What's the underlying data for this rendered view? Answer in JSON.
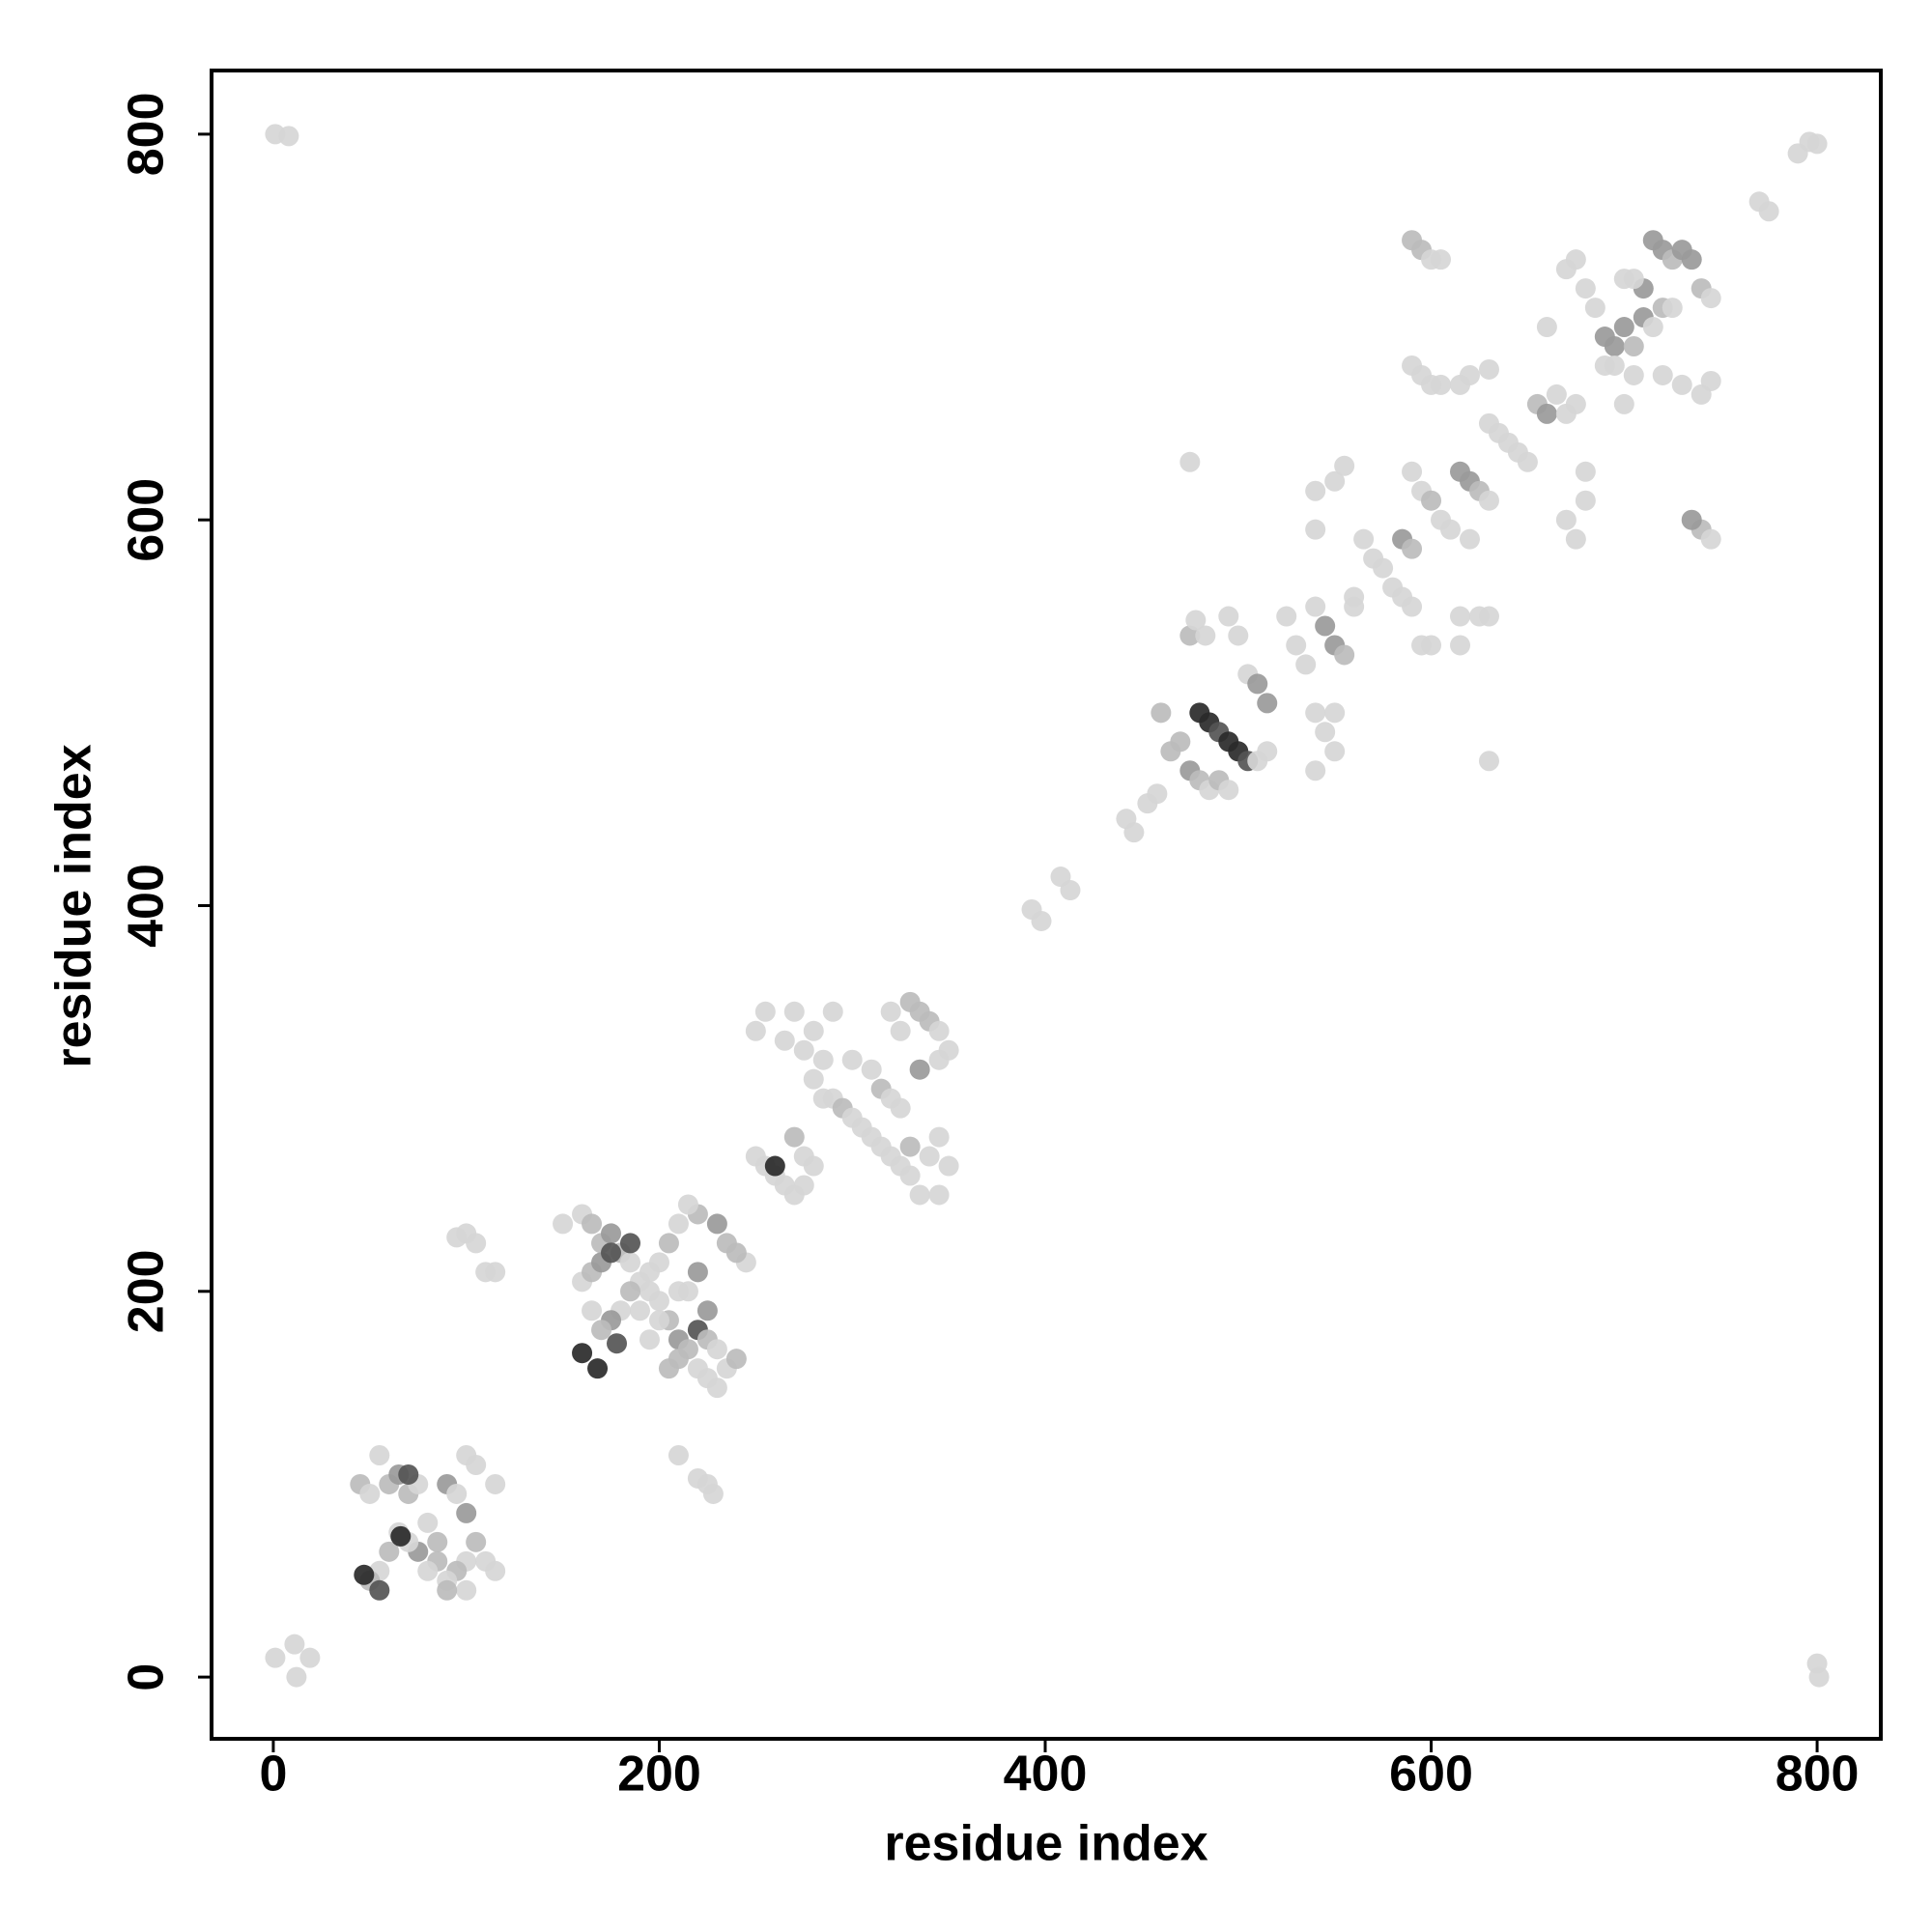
{
  "chart_data": {
    "type": "scatter",
    "x_label": "residue index",
    "y_label": "residue index",
    "xlim": [
      -32,
      833
    ],
    "ylim": [
      -32,
      833
    ],
    "xticks": [
      0,
      200,
      400,
      600,
      800
    ],
    "yticks": [
      0,
      200,
      400,
      600,
      800
    ],
    "x": [
      1,
      8,
      796,
      790,
      800,
      1,
      11,
      12,
      19,
      800,
      801,
      45,
      50,
      55,
      60,
      65,
      70,
      75,
      80,
      85,
      90,
      95,
      100,
      105,
      100,
      95,
      90,
      85,
      75,
      65,
      60,
      55,
      50,
      70,
      80,
      100,
      105,
      115,
      110,
      115,
      100,
      90,
      47,
      55,
      66,
      70,
      95,
      100,
      105,
      110,
      115,
      210,
      220,
      225,
      228,
      150,
      160,
      165,
      170,
      175,
      180,
      185,
      190,
      195,
      200,
      205,
      210,
      215,
      220,
      225,
      230,
      235,
      240,
      245,
      240,
      235,
      230,
      220,
      215,
      210,
      205,
      200,
      195,
      185,
      180,
      175,
      170,
      165,
      160,
      165,
      170,
      175,
      190,
      200,
      210,
      215,
      220,
      225,
      230,
      225,
      210,
      195,
      205,
      220,
      160,
      168,
      178,
      185,
      250,
      255,
      260,
      265,
      270,
      275,
      260,
      250,
      255,
      265,
      270,
      275,
      280,
      285,
      280,
      290,
      295,
      300,
      305,
      310,
      315,
      320,
      325,
      330,
      335,
      345,
      300,
      310,
      315,
      320,
      325,
      330,
      335,
      340,
      345,
      350,
      345,
      320,
      325,
      330,
      340,
      345,
      350,
      270,
      275,
      280,
      290,
      285,
      335,
      393,
      398,
      408,
      413,
      442,
      446,
      453,
      458,
      460,
      465,
      470,
      475,
      480,
      485,
      490,
      495,
      480,
      485,
      490,
      495,
      500,
      505,
      510,
      515,
      475,
      478,
      483,
      495,
      500,
      505,
      510,
      515,
      525,
      530,
      535,
      540,
      545,
      550,
      555,
      560,
      540,
      545,
      550,
      540,
      550,
      475,
      630,
      540,
      540,
      550,
      555,
      560,
      565,
      570,
      575,
      580,
      585,
      590,
      595,
      585,
      590,
      590,
      595,
      600,
      605,
      610,
      615,
      620,
      625,
      630,
      620,
      615,
      625,
      630,
      615,
      600,
      630,
      635,
      640,
      645,
      650,
      655,
      660,
      665,
      670,
      675,
      660,
      670,
      675,
      680,
      680,
      590,
      595,
      600,
      605,
      590,
      595,
      600,
      605,
      615,
      620,
      630,
      670,
      675,
      680,
      685,
      690,
      695,
      700,
      705,
      710,
      715,
      720,
      725,
      730,
      735,
      740,
      745,
      700,
      705,
      710,
      720,
      725,
      715,
      690,
      700,
      705,
      720,
      730,
      740,
      745,
      740,
      745,
      735,
      695,
      770,
      775
    ],
    "values": [
      800,
      799,
      796,
      790,
      795,
      10,
      17,
      0,
      10,
      7,
      0,
      100,
      95,
      115,
      100,
      105,
      95,
      100,
      80,
      70,
      100,
      95,
      85,
      70,
      60,
      55,
      50,
      60,
      65,
      75,
      65,
      55,
      50,
      70,
      55,
      115,
      110,
      100,
      60,
      55,
      45,
      45,
      53,
      45,
      73,
      105,
      228,
      230,
      225,
      210,
      210,
      115,
      103,
      100,
      95,
      235,
      240,
      235,
      225,
      230,
      220,
      215,
      205,
      200,
      195,
      185,
      175,
      170,
      160,
      155,
      150,
      160,
      165,
      215,
      220,
      225,
      235,
      240,
      245,
      235,
      225,
      215,
      210,
      200,
      190,
      185,
      180,
      190,
      205,
      210,
      215,
      220,
      190,
      185,
      165,
      200,
      180,
      175,
      170,
      190,
      200,
      175,
      160,
      210,
      168,
      160,
      173,
      225,
      270,
      265,
      260,
      255,
      250,
      255,
      265,
      335,
      345,
      330,
      345,
      325,
      335,
      320,
      310,
      300,
      295,
      290,
      285,
      280,
      275,
      270,
      265,
      260,
      250,
      250,
      320,
      315,
      305,
      300,
      295,
      350,
      345,
      340,
      335,
      325,
      320,
      345,
      335,
      275,
      270,
      280,
      265,
      280,
      270,
      265,
      345,
      300,
      315,
      398,
      392,
      415,
      408,
      445,
      438,
      453,
      458,
      500,
      480,
      485,
      470,
      465,
      460,
      465,
      460,
      500,
      495,
      490,
      485,
      480,
      475,
      475,
      480,
      540,
      548,
      540,
      550,
      540,
      520,
      515,
      505,
      550,
      535,
      525,
      555,
      545,
      535,
      530,
      555,
      500,
      490,
      480,
      470,
      500,
      630,
      475,
      595,
      615,
      620,
      628,
      560,
      590,
      580,
      575,
      565,
      560,
      555,
      535,
      590,
      585,
      625,
      615,
      610,
      600,
      595,
      625,
      620,
      615,
      610,
      590,
      550,
      550,
      550,
      535,
      535,
      650,
      645,
      640,
      635,
      630,
      660,
      655,
      665,
      655,
      660,
      700,
      600,
      590,
      610,
      625,
      745,
      740,
      735,
      735,
      680,
      675,
      670,
      670,
      670,
      675,
      678,
      730,
      735,
      720,
      710,
      695,
      690,
      700,
      690,
      720,
      745,
      740,
      735,
      740,
      735,
      720,
      715,
      725,
      725,
      705,
      710,
      710,
      700,
      680,
      660,
      675,
      675,
      670,
      665,
      672,
      595,
      590,
      600,
      680,
      765,
      760
    ],
    "colors": [
      "#d6d6d6",
      "#d6d6d6",
      "#d6d6d6",
      "#d6d6d6",
      "#d6d6d6",
      "#d6d6d6",
      "#d6d6d6",
      "#d6d6d6",
      "#d6d6d6",
      "#d6d6d6",
      "#d6d6d6",
      "#bcbcbc",
      "#d6d6d6",
      "#d6d6d6",
      "#bcbcbc",
      "#9a9a9a",
      "#bcbcbc",
      "#d6d6d6",
      "#d6d6d6",
      "#bcbcbc",
      "#9a9a9a",
      "#d6d6d6",
      "#9a9a9a",
      "#bcbcbc",
      "#d6d6d6",
      "#bcbcbc",
      "#d6d6d6",
      "#bcbcbc",
      "#9a9a9a",
      "#d6d6d6",
      "#bcbcbc",
      "#d6d6d6",
      "#bcbcbc",
      "#d6d6d6",
      "#d6d6d6",
      "#d6d6d6",
      "#d6d6d6",
      "#d6d6d6",
      "#d6d6d6",
      "#d6d6d6",
      "#d6d6d6",
      "#bcbcbc",
      "#2a2a2a",
      "#555555",
      "#2a2a2a",
      "#555555",
      "#d6d6d6",
      "#d6d6d6",
      "#d6d6d6",
      "#d6d6d6",
      "#d6d6d6",
      "#d6d6d6",
      "#d6d6d6",
      "#d6d6d6",
      "#d6d6d6",
      "#d6d6d6",
      "#d6d6d6",
      "#bcbcbc",
      "#bcbcbc",
      "#9a9a9a",
      "#bcbcbc",
      "#d6d6d6",
      "#d6d6d6",
      "#d6d6d6",
      "#d6d6d6",
      "#bcbcbc",
      "#9a9a9a",
      "#bcbcbc",
      "#d6d6d6",
      "#d6d6d6",
      "#d6d6d6",
      "#d6d6d6",
      "#bcbcbc",
      "#d6d6d6",
      "#bcbcbc",
      "#bcbcbc",
      "#9a9a9a",
      "#bcbcbc",
      "#d6d6d6",
      "#d6d6d6",
      "#bcbcbc",
      "#d6d6d6",
      "#d6d6d6",
      "#bcbcbc",
      "#d6d6d6",
      "#9a9a9a",
      "#bcbcbc",
      "#d6d6d6",
      "#d6d6d6",
      "#bcbcbc",
      "#9a9a9a",
      "#555555",
      "#d6d6d6",
      "#d6d6d6",
      "#bcbcbc",
      "#d6d6d6",
      "#555555",
      "#bcbcbc",
      "#d6d6d6",
      "#9a9a9a",
      "#d6d6d6",
      "#d6d6d6",
      "#bcbcbc",
      "#9a9a9a",
      "#2a2a2a",
      "#2a2a2a",
      "#555555",
      "#555555",
      "#d6d6d6",
      "#d6d6d6",
      "#d6d6d6",
      "#d6d6d6",
      "#d6d6d6",
      "#d6d6d6",
      "#2a2a2a",
      "#d6d6d6",
      "#d6d6d6",
      "#d6d6d6",
      "#d6d6d6",
      "#d6d6d6",
      "#d6d6d6",
      "#d6d6d6",
      "#d6d6d6",
      "#d6d6d6",
      "#bcbcbc",
      "#d6d6d6",
      "#d6d6d6",
      "#d6d6d6",
      "#d6d6d6",
      "#d6d6d6",
      "#d6d6d6",
      "#d6d6d6",
      "#d6d6d6",
      "#d6d6d6",
      "#d6d6d6",
      "#d6d6d6",
      "#bcbcbc",
      "#d6d6d6",
      "#d6d6d6",
      "#bcbcbc",
      "#bcbcbc",
      "#bcbcbc",
      "#d6d6d6",
      "#d6d6d6",
      "#d6d6d6",
      "#d6d6d6",
      "#d6d6d6",
      "#bcbcbc",
      "#d6d6d6",
      "#d6d6d6",
      "#d6d6d6",
      "#bcbcbc",
      "#d6d6d6",
      "#d6d6d6",
      "#d6d6d6",
      "#d6d6d6",
      "#9a9a9a",
      "#d6d6d6",
      "#d6d6d6",
      "#d6d6d6",
      "#d6d6d6",
      "#d6d6d6",
      "#d6d6d6",
      "#d6d6d6",
      "#d6d6d6",
      "#bcbcbc",
      "#bcbcbc",
      "#bcbcbc",
      "#9a9a9a",
      "#bcbcbc",
      "#d6d6d6",
      "#bcbcbc",
      "#d6d6d6",
      "#2a2a2a",
      "#2a2a2a",
      "#555555",
      "#2a2a2a",
      "#2a2a2a",
      "#555555",
      "#d6d6d6",
      "#d6d6d6",
      "#bcbcbc",
      "#d6d6d6",
      "#d6d6d6",
      "#d6d6d6",
      "#d6d6d6",
      "#d6d6d6",
      "#9a9a9a",
      "#9a9a9a",
      "#d6d6d6",
      "#d6d6d6",
      "#d6d6d6",
      "#d6d6d6",
      "#9a9a9a",
      "#9a9a9a",
      "#bcbcbc",
      "#d6d6d6",
      "#d6d6d6",
      "#d6d6d6",
      "#d6d6d6",
      "#d6d6d6",
      "#d6d6d6",
      "#d6d6d6",
      "#d6d6d6",
      "#d6d6d6",
      "#d6d6d6",
      "#d6d6d6",
      "#d6d6d6",
      "#d6d6d6",
      "#d6d6d6",
      "#d6d6d6",
      "#d6d6d6",
      "#d6d6d6",
      "#d6d6d6",
      "#d6d6d6",
      "#d6d6d6",
      "#9a9a9a",
      "#bcbcbc",
      "#d6d6d6",
      "#d6d6d6",
      "#bcbcbc",
      "#d6d6d6",
      "#d6d6d6",
      "#9a9a9a",
      "#9a9a9a",
      "#bcbcbc",
      "#d6d6d6",
      "#d6d6d6",
      "#d6d6d6",
      "#d6d6d6",
      "#d6d6d6",
      "#d6d6d6",
      "#d6d6d6",
      "#d6d6d6",
      "#d6d6d6",
      "#d6d6d6",
      "#d6d6d6",
      "#d6d6d6",
      "#bcbcbc",
      "#9a9a9a",
      "#d6d6d6",
      "#d6d6d6",
      "#d6d6d6",
      "#d6d6d6",
      "#d6d6d6",
      "#d6d6d6",
      "#d6d6d6",
      "#d6d6d6",
      "#bcbcbc",
      "#bcbcbc",
      "#d6d6d6",
      "#d6d6d6",
      "#d6d6d6",
      "#d6d6d6",
      "#d6d6d6",
      "#d6d6d6",
      "#d6d6d6",
      "#d6d6d6",
      "#d6d6d6",
      "#d6d6d6",
      "#d6d6d6",
      "#d6d6d6",
      "#d6d6d6",
      "#9a9a9a",
      "#9a9a9a",
      "#9a9a9a",
      "#bcbcbc",
      "#9a9a9a",
      "#9a9a9a",
      "#9a9a9a",
      "#bcbcbc",
      "#9a9a9a",
      "#9a9a9a",
      "#bcbcbc",
      "#d6d6d6",
      "#d6d6d6",
      "#d6d6d6",
      "#9a9a9a",
      "#bcbcbc",
      "#d6d6d6",
      "#d6d6d6",
      "#d6d6d6",
      "#d6d6d6",
      "#d6d6d6",
      "#d6d6d6",
      "#d6d6d6",
      "#d6d6d6",
      "#d6d6d6",
      "#bcbcbc",
      "#d6d6d6",
      "#9a9a9a",
      "#d6d6d6",
      "#d6d6d6",
      "#d6d6d6"
    ]
  }
}
